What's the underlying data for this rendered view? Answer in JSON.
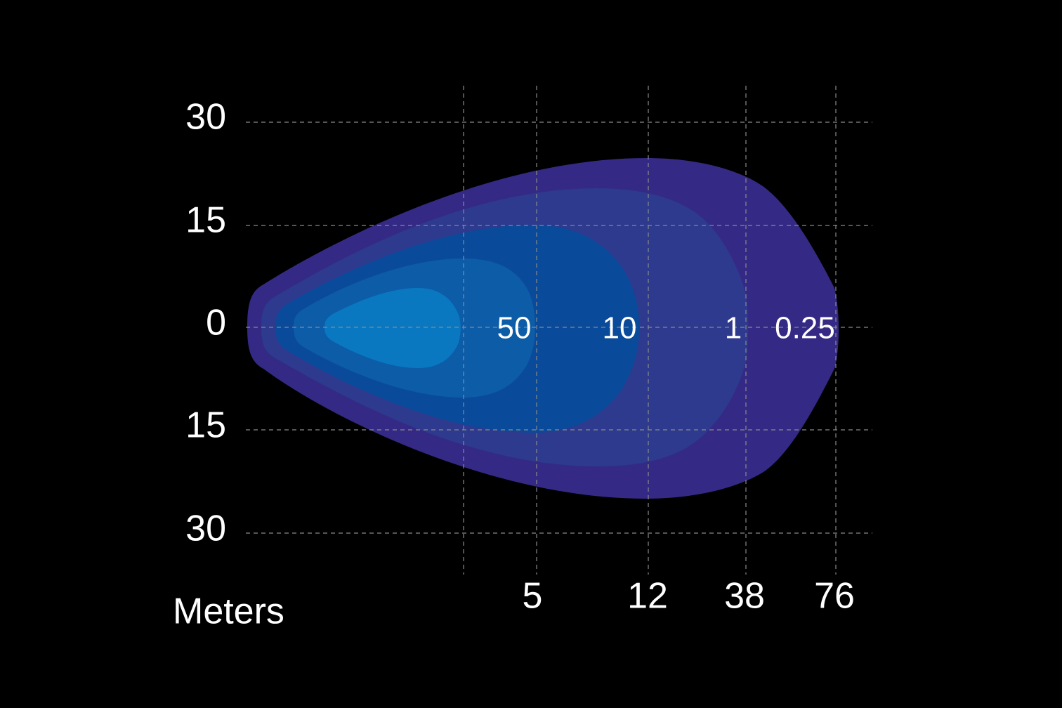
{
  "y_axis": {
    "labels": [
      "30",
      "15",
      "0",
      "15",
      "30"
    ]
  },
  "x_axis": {
    "title": "Meters",
    "labels": [
      "5",
      "12",
      "38",
      "76"
    ]
  },
  "contours": [
    {
      "label": "50"
    },
    {
      "label": "10"
    },
    {
      "label": "1"
    },
    {
      "label": "0.25"
    }
  ]
}
